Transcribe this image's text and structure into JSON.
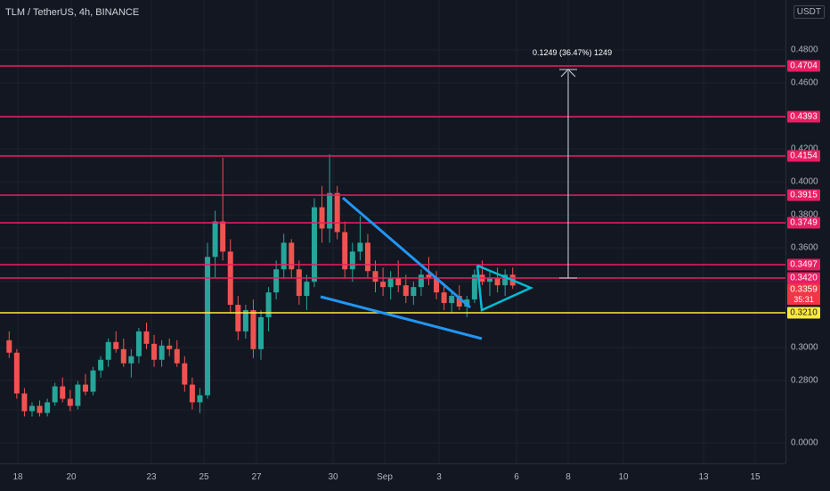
{
  "header": {
    "title": "TLM / TetherUS, 4h, BINANCE",
    "currency": "USDT"
  },
  "colors": {
    "bg": "#131722",
    "grid": "#1e222d",
    "up": "#26a69a",
    "down": "#ef5350",
    "level": "#e91e63",
    "support": "#ffeb3b",
    "pattern": "#2196f3",
    "measure": "#d1d4dc"
  },
  "price_axis": {
    "ticks": [
      "0.4800",
      "0.4600",
      "0.4400",
      "0.4200",
      "0.4000",
      "0.3800",
      "0.3600",
      "0.3400",
      "0.3000",
      "0.2800",
      "0.0000"
    ]
  },
  "time_axis": {
    "ticks": [
      "18",
      "20",
      "23",
      "25",
      "27",
      "30",
      "Sep",
      "3",
      "6",
      "8",
      "10",
      "13",
      "15"
    ]
  },
  "levels": [
    {
      "label": "0.4704",
      "kind": "resistance"
    },
    {
      "label": "0.4393",
      "kind": "resistance"
    },
    {
      "label": "0.4154",
      "kind": "resistance"
    },
    {
      "label": "0.3915",
      "kind": "resistance"
    },
    {
      "label": "0.3749",
      "kind": "resistance"
    },
    {
      "label": "0.3497",
      "kind": "resistance"
    },
    {
      "label": "0.3420",
      "kind": "resistance"
    },
    {
      "label": "0.3210",
      "kind": "support"
    }
  ],
  "current_price": {
    "label": "0.3359",
    "countdown": "35:31"
  },
  "measure_label": "0.1249 (36.47%) 1249",
  "chart_data": {
    "type": "candlestick",
    "title": "TLM / TetherUS, 4h, BINANCE",
    "ylabel": "USDT",
    "ylim": [
      0.25,
      0.49
    ],
    "x_range_label": [
      "18",
      "15"
    ],
    "horizontal_levels": [
      0.4704,
      0.4393,
      0.4154,
      0.3915,
      0.3749,
      0.3497,
      0.342,
      0.321
    ],
    "last_price": 0.3359,
    "measurement": {
      "from": 0.342,
      "to": 0.4669,
      "label": "0.1249 (36.47%) 1249"
    },
    "candles_approx": [
      [
        0.305,
        0.31,
        0.295,
        0.298
      ],
      [
        0.298,
        0.3,
        0.272,
        0.275
      ],
      [
        0.275,
        0.278,
        0.262,
        0.265
      ],
      [
        0.265,
        0.27,
        0.262,
        0.268
      ],
      [
        0.268,
        0.271,
        0.262,
        0.264
      ],
      [
        0.264,
        0.272,
        0.262,
        0.27
      ],
      [
        0.27,
        0.281,
        0.268,
        0.279
      ],
      [
        0.279,
        0.284,
        0.27,
        0.272
      ],
      [
        0.272,
        0.277,
        0.265,
        0.268
      ],
      [
        0.268,
        0.282,
        0.266,
        0.28
      ],
      [
        0.28,
        0.286,
        0.274,
        0.276
      ],
      [
        0.276,
        0.29,
        0.274,
        0.288
      ],
      [
        0.288,
        0.296,
        0.284,
        0.294
      ],
      [
        0.294,
        0.306,
        0.29,
        0.304
      ],
      [
        0.304,
        0.31,
        0.298,
        0.3
      ],
      [
        0.3,
        0.306,
        0.29,
        0.292
      ],
      [
        0.292,
        0.3,
        0.284,
        0.296
      ],
      [
        0.296,
        0.312,
        0.292,
        0.31
      ],
      [
        0.31,
        0.315,
        0.3,
        0.303
      ],
      [
        0.303,
        0.308,
        0.29,
        0.294
      ],
      [
        0.294,
        0.305,
        0.29,
        0.302
      ],
      [
        0.302,
        0.306,
        0.296,
        0.3
      ],
      [
        0.3,
        0.305,
        0.29,
        0.292
      ],
      [
        0.292,
        0.296,
        0.276,
        0.28
      ],
      [
        0.28,
        0.284,
        0.266,
        0.27
      ],
      [
        0.27,
        0.278,
        0.264,
        0.274
      ],
      [
        0.274,
        0.36,
        0.272,
        0.352
      ],
      [
        0.352,
        0.378,
        0.34,
        0.372
      ],
      [
        0.372,
        0.408,
        0.35,
        0.355
      ],
      [
        0.355,
        0.362,
        0.32,
        0.325
      ],
      [
        0.325,
        0.33,
        0.305,
        0.31
      ],
      [
        0.31,
        0.325,
        0.306,
        0.322
      ],
      [
        0.322,
        0.328,
        0.295,
        0.3
      ],
      [
        0.3,
        0.322,
        0.294,
        0.318
      ],
      [
        0.318,
        0.335,
        0.31,
        0.332
      ],
      [
        0.332,
        0.35,
        0.328,
        0.345
      ],
      [
        0.345,
        0.365,
        0.34,
        0.36
      ],
      [
        0.36,
        0.362,
        0.34,
        0.345
      ],
      [
        0.345,
        0.35,
        0.325,
        0.33
      ],
      [
        0.33,
        0.342,
        0.322,
        0.338
      ],
      [
        0.338,
        0.385,
        0.335,
        0.38
      ],
      [
        0.38,
        0.392,
        0.36,
        0.368
      ],
      [
        0.368,
        0.41,
        0.36,
        0.388
      ],
      [
        0.388,
        0.392,
        0.362,
        0.366
      ],
      [
        0.366,
        0.372,
        0.34,
        0.345
      ],
      [
        0.345,
        0.36,
        0.338,
        0.355
      ],
      [
        0.355,
        0.375,
        0.35,
        0.36
      ],
      [
        0.36,
        0.365,
        0.34,
        0.344
      ],
      [
        0.344,
        0.35,
        0.332,
        0.338
      ],
      [
        0.338,
        0.346,
        0.33,
        0.335
      ],
      [
        0.335,
        0.344,
        0.328,
        0.34
      ],
      [
        0.34,
        0.35,
        0.332,
        0.336
      ],
      [
        0.336,
        0.342,
        0.326,
        0.33
      ],
      [
        0.33,
        0.338,
        0.325,
        0.335
      ],
      [
        0.335,
        0.345,
        0.33,
        0.342
      ],
      [
        0.342,
        0.352,
        0.336,
        0.34
      ],
      [
        0.34,
        0.344,
        0.328,
        0.332
      ],
      [
        0.332,
        0.336,
        0.322,
        0.326
      ],
      [
        0.326,
        0.332,
        0.32,
        0.33
      ],
      [
        0.33,
        0.336,
        0.322,
        0.324
      ],
      [
        0.324,
        0.33,
        0.318,
        0.328
      ],
      [
        0.328,
        0.345,
        0.326,
        0.342
      ],
      [
        0.342,
        0.35,
        0.336,
        0.338
      ],
      [
        0.338,
        0.344,
        0.33,
        0.34
      ],
      [
        0.34,
        0.346,
        0.332,
        0.336
      ],
      [
        0.336,
        0.345,
        0.33,
        0.342
      ],
      [
        0.342,
        0.346,
        0.334,
        0.3359
      ]
    ]
  }
}
